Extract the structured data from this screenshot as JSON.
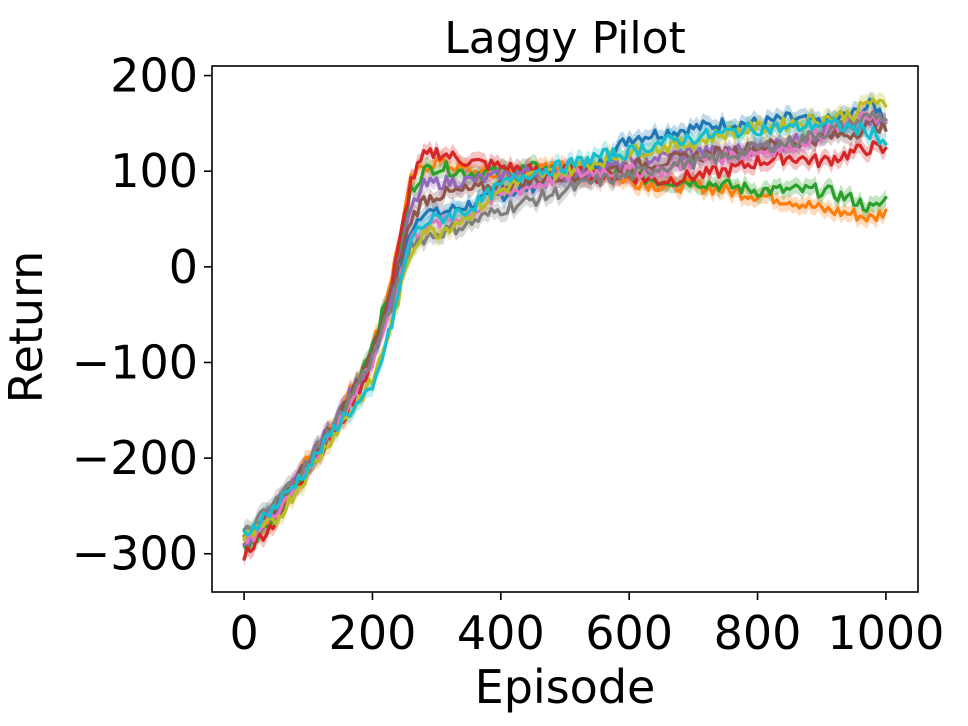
{
  "chart_data": {
    "type": "line",
    "title": "Laggy Pilot",
    "xlabel": "Episode",
    "ylabel": "Return",
    "xlim": [
      -50,
      1050
    ],
    "ylim": [
      -340,
      210
    ],
    "xticks": [
      0,
      200,
      400,
      600,
      800,
      1000
    ],
    "yticks": [
      -300,
      -200,
      -100,
      0,
      100,
      200
    ],
    "xtick_labels": [
      "0",
      "200",
      "400",
      "600",
      "800",
      "1000"
    ],
    "ytick_labels": [
      "−300",
      "−200",
      "−100",
      "0",
      "100",
      "200"
    ],
    "grid": false,
    "legend": "none",
    "x": [
      0,
      50,
      100,
      150,
      200,
      230,
      260,
      280,
      300,
      350,
      400,
      450,
      500,
      550,
      600,
      650,
      700,
      750,
      800,
      850,
      900,
      950,
      980,
      1000
    ],
    "series": [
      {
        "color": "#1f77b4",
        "values": [
          -285,
          -250,
          -205,
          -155,
          -95,
          -35,
          40,
          60,
          55,
          65,
          75,
          85,
          95,
          105,
          135,
          140,
          145,
          150,
          150,
          155,
          150,
          160,
          170,
          155
        ]
      },
      {
        "color": "#ff7f0e",
        "values": [
          -290,
          -255,
          -200,
          -150,
          -85,
          -10,
          90,
          105,
          110,
          100,
          95,
          100,
          105,
          100,
          90,
          85,
          85,
          80,
          75,
          70,
          60,
          55,
          50,
          60
        ]
      },
      {
        "color": "#2ca02c",
        "values": [
          -295,
          -258,
          -210,
          -160,
          -80,
          -20,
          80,
          100,
          105,
          98,
          100,
          103,
          100,
          100,
          95,
          90,
          90,
          85,
          80,
          80,
          80,
          70,
          60,
          70
        ]
      },
      {
        "color": "#d62728",
        "values": [
          -300,
          -265,
          -210,
          -165,
          -100,
          -20,
          90,
          115,
          120,
          110,
          105,
          100,
          100,
          95,
          95,
          90,
          95,
          100,
          110,
          115,
          110,
          120,
          125,
          120
        ]
      },
      {
        "color": "#9467bd",
        "values": [
          -290,
          -255,
          -205,
          -150,
          -95,
          -30,
          60,
          85,
          88,
          90,
          95,
          100,
          95,
          100,
          110,
          115,
          120,
          120,
          125,
          130,
          140,
          145,
          150,
          150
        ]
      },
      {
        "color": "#8c564b",
        "values": [
          -285,
          -250,
          -205,
          -155,
          -90,
          -25,
          50,
          70,
          75,
          80,
          85,
          90,
          95,
          100,
          105,
          110,
          115,
          120,
          125,
          130,
          135,
          140,
          150,
          145
        ]
      },
      {
        "color": "#e377c2",
        "values": [
          -290,
          -255,
          -210,
          -160,
          -100,
          -40,
          30,
          40,
          45,
          55,
          75,
          85,
          95,
          100,
          100,
          100,
          110,
          115,
          120,
          125,
          140,
          150,
          160,
          150
        ]
      },
      {
        "color": "#7f7f7f",
        "values": [
          -280,
          -245,
          -205,
          -155,
          -95,
          -40,
          25,
          30,
          35,
          45,
          60,
          70,
          80,
          90,
          95,
          105,
          110,
          115,
          125,
          130,
          140,
          150,
          160,
          155
        ]
      },
      {
        "color": "#bcbd22",
        "values": [
          -285,
          -265,
          -215,
          -165,
          -120,
          -60,
          15,
          40,
          35,
          55,
          80,
          95,
          100,
          110,
          120,
          125,
          130,
          140,
          145,
          150,
          155,
          160,
          175,
          165
        ]
      },
      {
        "color": "#17becf",
        "values": [
          -280,
          -250,
          -210,
          -160,
          -130,
          -60,
          30,
          45,
          50,
          60,
          85,
          100,
          105,
          115,
          120,
          130,
          135,
          140,
          145,
          145,
          150,
          145,
          140,
          130
        ]
      }
    ]
  }
}
